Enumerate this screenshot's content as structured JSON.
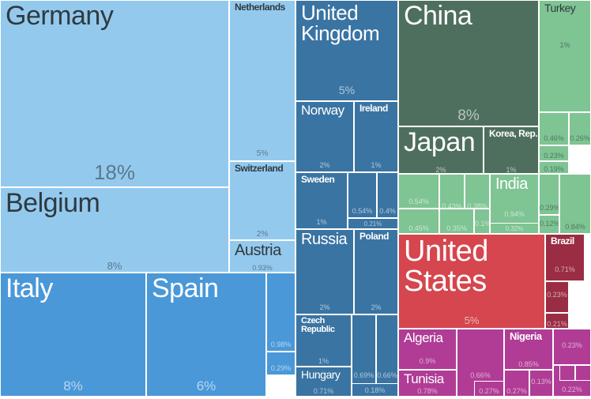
{
  "chart_data": {
    "type": "treemap",
    "colors": {
      "europe_light": "#94c9ee",
      "europe_mid": "#4a98d8",
      "europe_dark": "#3a74a3",
      "asia": "#4e6f5d",
      "asia_light": "#7fc493",
      "americas": "#d5464e",
      "americas_dark": "#9a2d43",
      "africa": "#b03c95"
    },
    "cells": [
      {
        "name": "Germany",
        "value": "18%"
      },
      {
        "name": "Netherlands",
        "value": "5%"
      },
      {
        "name": "Belgium",
        "value": "8%"
      },
      {
        "name": "Switzerland",
        "value": "2%"
      },
      {
        "name": "Austria",
        "value": "0.93%"
      },
      {
        "name": "Italy",
        "value": "8%"
      },
      {
        "name": "Spain",
        "value": "6%"
      },
      {
        "name": "",
        "value": "0.98%"
      },
      {
        "name": "",
        "value": "0.29%"
      },
      {
        "name": "United Kingdom",
        "value": "5%"
      },
      {
        "name": "Norway",
        "value": "2%"
      },
      {
        "name": "Ireland",
        "value": "1%"
      },
      {
        "name": "Sweden",
        "value": "1%"
      },
      {
        "name": "",
        "value": "0.54%"
      },
      {
        "name": "",
        "value": "0.4%"
      },
      {
        "name": "",
        "value": "0.21%"
      },
      {
        "name": "Russia",
        "value": "2%"
      },
      {
        "name": "Poland",
        "value": "2%"
      },
      {
        "name": "Czech Republic",
        "value": "1%"
      },
      {
        "name": "Hungary",
        "value": "0.71%"
      },
      {
        "name": "",
        "value": "0.69%"
      },
      {
        "name": "",
        "value": "0.66%"
      },
      {
        "name": "",
        "value": "0.18%"
      },
      {
        "name": "China",
        "value": "8%"
      },
      {
        "name": "Japan",
        "value": "2%"
      },
      {
        "name": "Korea, Rep.",
        "value": "1%"
      },
      {
        "name": "Turkey",
        "value": "1%"
      },
      {
        "name": "",
        "value": "0.82%"
      },
      {
        "name": "",
        "value": "0.57%"
      },
      {
        "name": "",
        "value": "0.46%"
      },
      {
        "name": "",
        "value": "0.26%"
      },
      {
        "name": "",
        "value": "0.23%"
      },
      {
        "name": "",
        "value": "0.19%"
      },
      {
        "name": "India",
        "value": "0.94%"
      },
      {
        "name": "",
        "value": "0.54%"
      },
      {
        "name": "",
        "value": "0.43%"
      },
      {
        "name": "",
        "value": "0.38%"
      },
      {
        "name": "",
        "value": "0.45%"
      },
      {
        "name": "",
        "value": "0.35%"
      },
      {
        "name": "",
        "value": "0.1%"
      },
      {
        "name": "",
        "value": "0.32%"
      },
      {
        "name": "",
        "value": "0.29%"
      },
      {
        "name": "",
        "value": "0.12%"
      },
      {
        "name": "",
        "value": "0.84%"
      },
      {
        "name": "United States",
        "value": "5%"
      },
      {
        "name": "Brazil",
        "value": "0.71%"
      },
      {
        "name": "",
        "value": "0.23%"
      },
      {
        "name": "",
        "value": "0.21%"
      },
      {
        "name": "Algeria",
        "value": "0.9%"
      },
      {
        "name": "Tunisia",
        "value": "0.78%"
      },
      {
        "name": "",
        "value": "0.66%"
      },
      {
        "name": "",
        "value": "0.27%"
      },
      {
        "name": "Nigeria",
        "value": "0.85%"
      },
      {
        "name": "",
        "value": "0.27%"
      },
      {
        "name": "",
        "value": "0.13%"
      },
      {
        "name": "",
        "value": "0.23%"
      },
      {
        "name": "",
        "value": "0.22%"
      }
    ]
  }
}
